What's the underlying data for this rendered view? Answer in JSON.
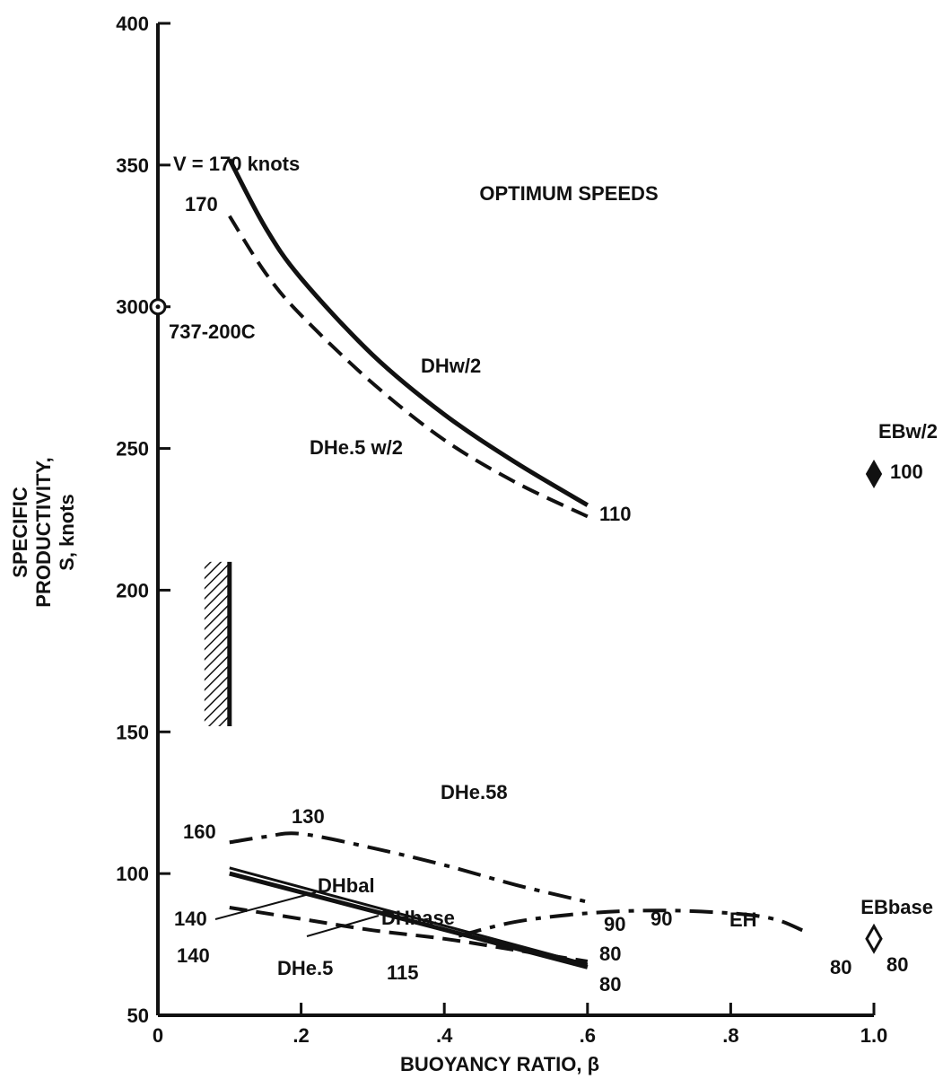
{
  "chart_data": {
    "type": "line",
    "title": "OPTIMUM SPEEDS",
    "xlabel": "BUOYANCY RATIO, β",
    "ylabel_lines": [
      "SPECIFIC",
      "PRODUCTIVITY,",
      "S, knots"
    ],
    "xlim": [
      0,
      1.0
    ],
    "ylim": [
      50,
      400
    ],
    "x_ticks": [
      0,
      0.2,
      0.4,
      0.6,
      0.8,
      1.0
    ],
    "x_tick_labels": [
      "0",
      ".2",
      ".4",
      ".6",
      ".8",
      "1.0"
    ],
    "y_ticks": [
      50,
      100,
      150,
      200,
      250,
      300,
      350,
      400
    ],
    "y_tick_labels": [
      "50",
      "100",
      "150",
      "200",
      "250",
      "300",
      "350",
      "400"
    ],
    "grid": false,
    "series": [
      {
        "name": "DHw/2",
        "style": "solid",
        "stroke_width": 5,
        "points": [
          [
            0.1,
            352
          ],
          [
            0.15,
            328
          ],
          [
            0.2,
            310
          ],
          [
            0.3,
            283
          ],
          [
            0.4,
            262
          ],
          [
            0.5,
            245
          ],
          [
            0.6,
            230
          ]
        ],
        "speed_labels": [
          "V = 170 knots",
          "110"
        ]
      },
      {
        "name": "DHe.5 w/2",
        "style": "dash",
        "stroke_width": 4,
        "points": [
          [
            0.1,
            332
          ],
          [
            0.15,
            312
          ],
          [
            0.2,
            297
          ],
          [
            0.3,
            273
          ],
          [
            0.4,
            253
          ],
          [
            0.5,
            238
          ],
          [
            0.6,
            226
          ]
        ],
        "speed_labels": [
          "170"
        ]
      },
      {
        "name": "DHe.58",
        "style": "dashdot",
        "stroke_width": 4,
        "points": [
          [
            0.1,
            111
          ],
          [
            0.15,
            113
          ],
          [
            0.2,
            114
          ],
          [
            0.3,
            109
          ],
          [
            0.4,
            103
          ],
          [
            0.5,
            96
          ],
          [
            0.6,
            90
          ]
        ],
        "speed_labels": [
          "160",
          "130",
          "90"
        ]
      },
      {
        "name": "DHbal",
        "style": "solid",
        "stroke_width": 3,
        "points": [
          [
            0.1,
            102
          ],
          [
            0.6,
            68
          ]
        ],
        "speed_labels": [
          "140",
          "80"
        ]
      },
      {
        "name": "DHbase",
        "style": "solid",
        "stroke_width": 5,
        "points": [
          [
            0.1,
            100
          ],
          [
            0.6,
            67
          ]
        ],
        "speed_labels": [
          "80"
        ]
      },
      {
        "name": "DHe.5",
        "style": "dash",
        "stroke_width": 4,
        "points": [
          [
            0.1,
            88
          ],
          [
            0.2,
            84
          ],
          [
            0.3,
            80
          ],
          [
            0.4,
            77
          ],
          [
            0.5,
            73
          ],
          [
            0.6,
            69
          ]
        ],
        "speed_labels": [
          "140"
        ]
      },
      {
        "name": "EH",
        "style": "dashdot",
        "stroke_width": 4,
        "points": [
          [
            0.42,
            78
          ],
          [
            0.5,
            83
          ],
          [
            0.6,
            86
          ],
          [
            0.7,
            87
          ],
          [
            0.8,
            86
          ],
          [
            0.86,
            84
          ],
          [
            0.9,
            80
          ]
        ],
        "speed_labels": [
          "115",
          "90",
          "80"
        ]
      }
    ],
    "points": [
      {
        "name": "737-200C",
        "x": 0,
        "y": 300,
        "marker": "circle-dot"
      },
      {
        "name": "EBw/2",
        "x": 1.0,
        "y": 241,
        "marker": "diamond-filled",
        "speed_label": "100"
      },
      {
        "name": "EBbase",
        "x": 1.0,
        "y": 77,
        "marker": "diamond-open",
        "speed_label": "80"
      }
    ],
    "hatched_band": {
      "x": 0.1,
      "y_range": [
        152,
        210
      ]
    }
  }
}
